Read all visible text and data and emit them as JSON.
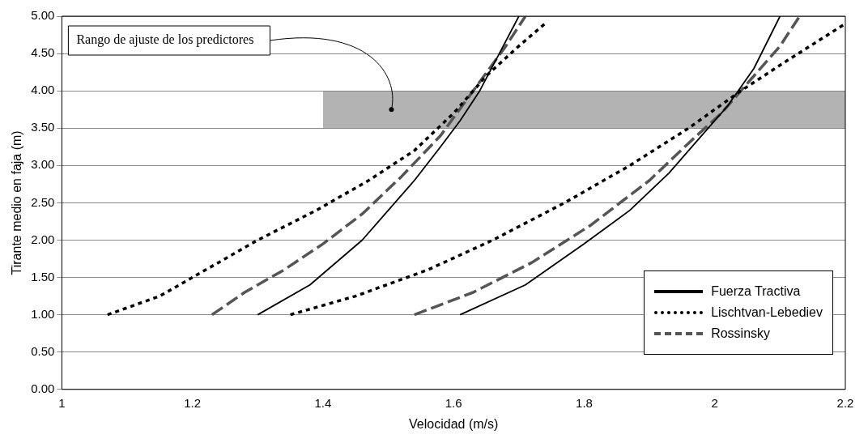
{
  "chart_data": {
    "type": "line",
    "xlabel": "Velocidad (m/s)",
    "ylabel": "Tirante medio en faja (m)",
    "series": [
      {
        "name": "Fuerza Tractiva",
        "color": "#000000",
        "line_style": "solid",
        "x": [
          1.3,
          1.38,
          1.46,
          1.5,
          1.54,
          1.58,
          1.61,
          1.64,
          1.67,
          1.7
        ],
        "values": [
          1.0,
          1.4,
          2.0,
          2.4,
          2.8,
          3.25,
          3.6,
          4.0,
          4.5,
          5.0
        ]
      },
      {
        "color": "#000000",
        "line_style": "solid",
        "x": [
          1.61,
          1.71,
          1.8,
          1.87,
          1.93,
          1.98,
          2.02,
          2.06,
          2.1
        ],
        "values": [
          1.0,
          1.4,
          1.95,
          2.4,
          2.9,
          3.4,
          3.8,
          4.3,
          5.0
        ]
      },
      {
        "name": "Lischtvan-Lebediev",
        "color": "#000000",
        "line_style": "dotted",
        "x": [
          1.07,
          1.15,
          1.22,
          1.3,
          1.39,
          1.47,
          1.54,
          1.6,
          1.65,
          1.7,
          1.74
        ],
        "values": [
          1.0,
          1.25,
          1.6,
          2.0,
          2.4,
          2.8,
          3.2,
          3.7,
          4.2,
          4.6,
          4.9
        ]
      },
      {
        "color": "#000000",
        "line_style": "dotted",
        "x": [
          1.35,
          1.45,
          1.56,
          1.66,
          1.77,
          1.87,
          1.96,
          2.04,
          2.11,
          2.2
        ],
        "values": [
          1.0,
          1.25,
          1.6,
          2.0,
          2.5,
          3.0,
          3.5,
          4.0,
          4.4,
          4.9
        ]
      },
      {
        "name": "Rossinsky",
        "color": "#555555",
        "line_style": "dashed",
        "x": [
          1.23,
          1.28,
          1.34,
          1.4,
          1.46,
          1.52,
          1.58,
          1.63,
          1.68,
          1.71
        ],
        "values": [
          1.0,
          1.3,
          1.6,
          1.95,
          2.35,
          2.85,
          3.4,
          4.0,
          4.6,
          5.0
        ]
      },
      {
        "color": "#555555",
        "line_style": "dashed",
        "x": [
          1.54,
          1.63,
          1.72,
          1.81,
          1.9,
          1.96,
          2.01,
          2.06,
          2.1,
          2.13
        ],
        "values": [
          1.0,
          1.3,
          1.7,
          2.2,
          2.8,
          3.3,
          3.7,
          4.2,
          4.6,
          5.0
        ]
      }
    ],
    "xlim": [
      1,
      2.2
    ],
    "xticks": [
      1,
      1.2,
      1.4,
      1.6,
      1.8,
      2,
      2.2
    ],
    "ylim": [
      0,
      5
    ],
    "yticks": [
      {
        "value": 0,
        "label": "0.00"
      },
      {
        "value": 0.5,
        "label": "0.50"
      },
      {
        "value": 1,
        "label": "1.00"
      },
      {
        "value": 1.5,
        "label": "1.50"
      },
      {
        "value": 2,
        "label": "2.00"
      },
      {
        "value": 2.5,
        "label": "2.50"
      },
      {
        "value": 3,
        "label": "3.00"
      },
      {
        "value": 3.5,
        "label": "3.50"
      },
      {
        "value": 4,
        "label": "4.00"
      },
      {
        "value": 4.5,
        "label": "4.50"
      },
      {
        "value": 5,
        "label": "5.00"
      }
    ],
    "bands": [
      {
        "axis": "y",
        "from": 3.5,
        "to": 4.0,
        "label": "Rango de ajuste de los predictores",
        "color": "#808080"
      }
    ],
    "grid": "y",
    "legend": "bottom right",
    "marker": "none"
  }
}
